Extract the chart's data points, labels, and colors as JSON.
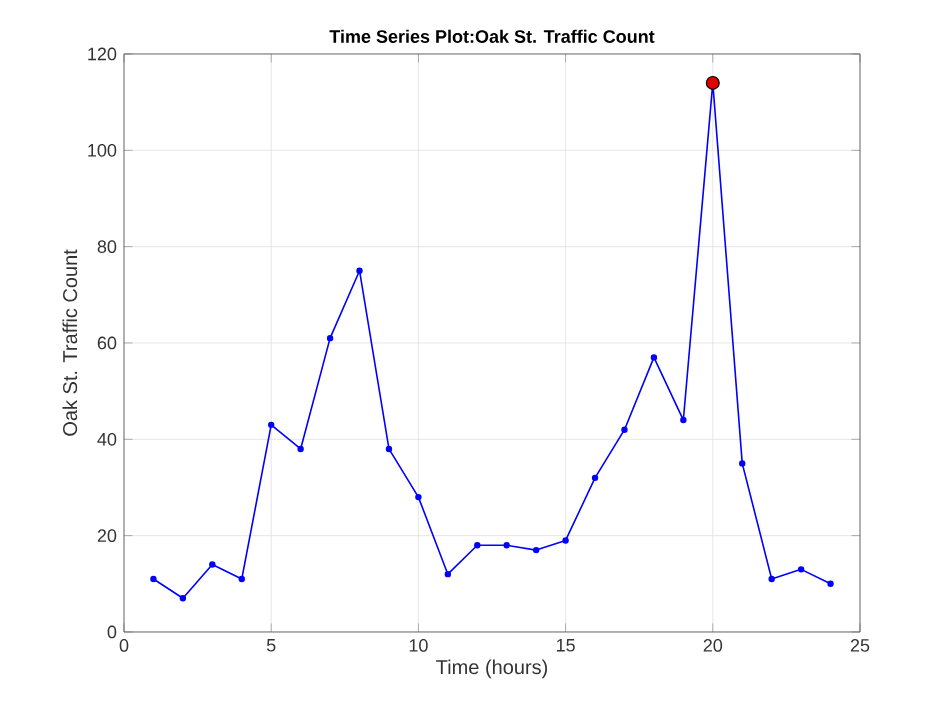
{
  "chart_data": {
    "type": "line",
    "title": "Time Series Plot:Oak St. Traffic Count",
    "xlabel": "Time (hours)",
    "ylabel": "Oak St. Traffic Count",
    "x": [
      1,
      2,
      3,
      4,
      5,
      6,
      7,
      8,
      9,
      10,
      11,
      12,
      13,
      14,
      15,
      16,
      17,
      18,
      19,
      20,
      21,
      22,
      23,
      24
    ],
    "series": [
      {
        "color": "#0000ff",
        "values": [
          11,
          7,
          14,
          11,
          43,
          38,
          61,
          75,
          38,
          28,
          12,
          18,
          18,
          17,
          19,
          32,
          42,
          57,
          44,
          114,
          35,
          11,
          13,
          10
        ]
      },
      {
        "type": "scatter",
        "color": "#e00000",
        "x": [
          20
        ],
        "values": [
          114
        ]
      }
    ],
    "marker": "circle",
    "line_style": "solid",
    "grid": true,
    "xlim": [
      0,
      25
    ],
    "ylim": [
      0,
      120
    ],
    "xticks": [
      0,
      5,
      10,
      15,
      20,
      25
    ],
    "yticks": [
      0,
      20,
      40,
      60,
      80,
      100,
      120
    ]
  }
}
